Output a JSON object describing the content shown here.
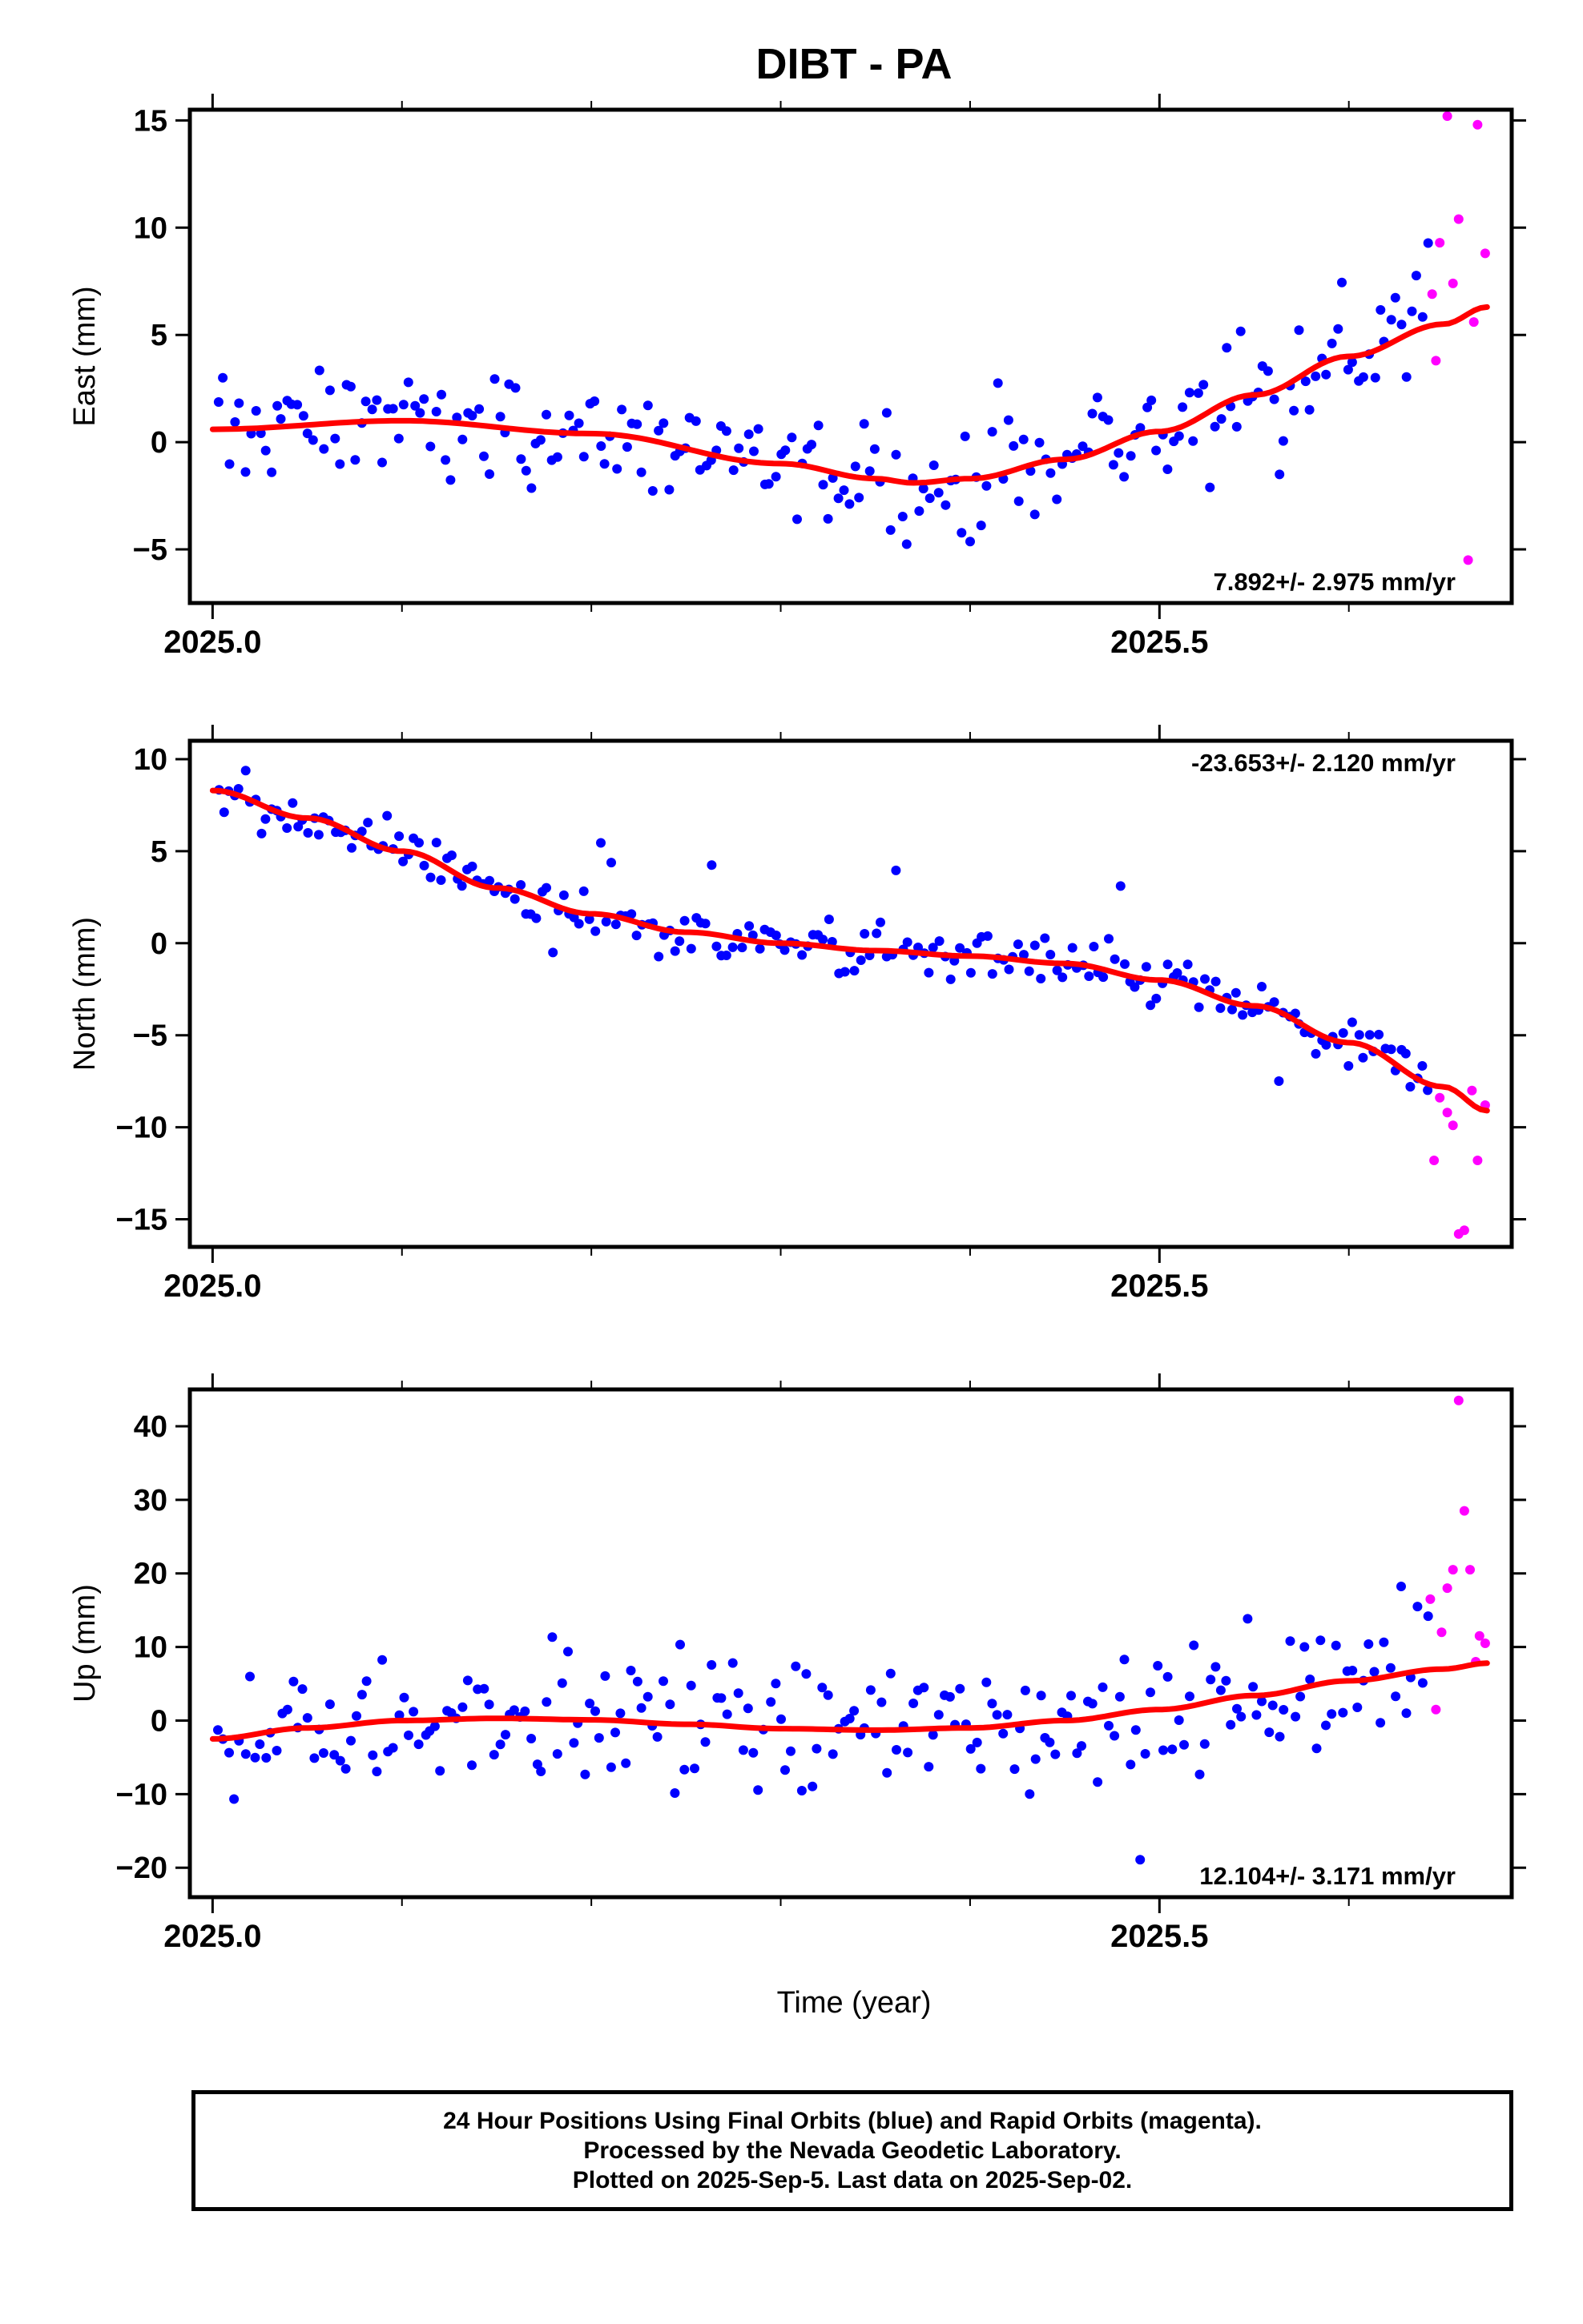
{
  "chart_data": {
    "type": "scatter",
    "title": "DIBT - PA",
    "xlabel": "Time (year)",
    "x_ticks": [
      "2025.0",
      "2025.5"
    ],
    "xlim": [
      2024.988,
      2025.686
    ],
    "colors": {
      "final": "#0000ff",
      "rapid": "#ff00ff",
      "fit": "#ff0000"
    },
    "panels": [
      {
        "component": "East",
        "ylabel": "East (mm)",
        "ylim": [
          -7.5,
          15.5
        ],
        "y_ticks": [
          15,
          10,
          5,
          0,
          -5
        ],
        "rate_label": "7.892+/- 2.975 mm/yr",
        "rate_position": "bottom-right",
        "fit_anchors": [
          [
            2025.0,
            0.6
          ],
          [
            2025.1,
            1.0
          ],
          [
            2025.2,
            0.4
          ],
          [
            2025.3,
            -1.0
          ],
          [
            2025.35,
            -1.7
          ],
          [
            2025.37,
            -1.9
          ],
          [
            2025.4,
            -1.7
          ],
          [
            2025.45,
            -0.8
          ],
          [
            2025.5,
            0.5
          ],
          [
            2025.55,
            2.2
          ],
          [
            2025.6,
            4.0
          ],
          [
            2025.65,
            5.5
          ],
          [
            2025.673,
            6.3
          ]
        ],
        "rapid": [
          [
            2025.644,
            6.9
          ],
          [
            2025.646,
            3.8
          ],
          [
            2025.648,
            9.3
          ],
          [
            2025.652,
            15.2
          ],
          [
            2025.655,
            7.4
          ],
          [
            2025.658,
            10.4
          ],
          [
            2025.663,
            -5.5
          ],
          [
            2025.666,
            5.6
          ],
          [
            2025.668,
            14.8
          ],
          [
            2025.672,
            8.8
          ]
        ]
      },
      {
        "component": "North",
        "ylabel": "North (mm)",
        "ylim": [
          -16.5,
          11
        ],
        "y_ticks": [
          10,
          5,
          0,
          -5,
          -10,
          -15
        ],
        "rate_label": "-23.653+/- 2.120 mm/yr",
        "rate_position": "top-right",
        "fit_anchors": [
          [
            2025.0,
            8.3
          ],
          [
            2025.05,
            6.8
          ],
          [
            2025.1,
            5.0
          ],
          [
            2025.15,
            3.0
          ],
          [
            2025.2,
            1.6
          ],
          [
            2025.25,
            0.6
          ],
          [
            2025.3,
            0.0
          ],
          [
            2025.35,
            -0.4
          ],
          [
            2025.4,
            -0.7
          ],
          [
            2025.45,
            -1.1
          ],
          [
            2025.5,
            -2.0
          ],
          [
            2025.55,
            -3.4
          ],
          [
            2025.6,
            -5.4
          ],
          [
            2025.65,
            -7.8
          ],
          [
            2025.673,
            -9.1
          ]
        ],
        "rapid": [
          [
            2025.645,
            -11.8
          ],
          [
            2025.648,
            -8.4
          ],
          [
            2025.652,
            -9.2
          ],
          [
            2025.655,
            -9.9
          ],
          [
            2025.658,
            -15.8
          ],
          [
            2025.661,
            -15.6
          ],
          [
            2025.665,
            -8.0
          ],
          [
            2025.668,
            -11.8
          ],
          [
            2025.672,
            -8.8
          ]
        ]
      },
      {
        "component": "Up",
        "ylabel": "Up (mm)",
        "ylim": [
          -24,
          45
        ],
        "y_ticks": [
          40,
          30,
          20,
          10,
          0,
          -10,
          -20
        ],
        "rate_label": "12.104+/- 3.171 mm/yr",
        "rate_position": "bottom-right",
        "fit_anchors": [
          [
            2025.0,
            -2.5
          ],
          [
            2025.05,
            -1.0
          ],
          [
            2025.1,
            0.0
          ],
          [
            2025.15,
            0.3
          ],
          [
            2025.2,
            0.1
          ],
          [
            2025.25,
            -0.5
          ],
          [
            2025.3,
            -1.1
          ],
          [
            2025.35,
            -1.3
          ],
          [
            2025.4,
            -1.0
          ],
          [
            2025.45,
            0.0
          ],
          [
            2025.5,
            1.5
          ],
          [
            2025.55,
            3.4
          ],
          [
            2025.6,
            5.4
          ],
          [
            2025.65,
            7.0
          ],
          [
            2025.673,
            7.8
          ]
        ],
        "rapid": [
          [
            2025.643,
            16.5
          ],
          [
            2025.646,
            1.5
          ],
          [
            2025.649,
            12.0
          ],
          [
            2025.652,
            18.0
          ],
          [
            2025.655,
            20.5
          ],
          [
            2025.658,
            43.5
          ],
          [
            2025.661,
            28.5
          ],
          [
            2025.664,
            20.5
          ],
          [
            2025.667,
            8.0
          ],
          [
            2025.669,
            11.5
          ],
          [
            2025.672,
            10.5
          ]
        ]
      }
    ]
  },
  "caption": {
    "line1": "24 Hour Positions Using Final Orbits (blue) and Rapid Orbits (magenta).",
    "line2": "Processed by the Nevada Geodetic Laboratory.",
    "line3": "Plotted on 2025-Sep-5. Last data on 2025-Sep-02."
  }
}
